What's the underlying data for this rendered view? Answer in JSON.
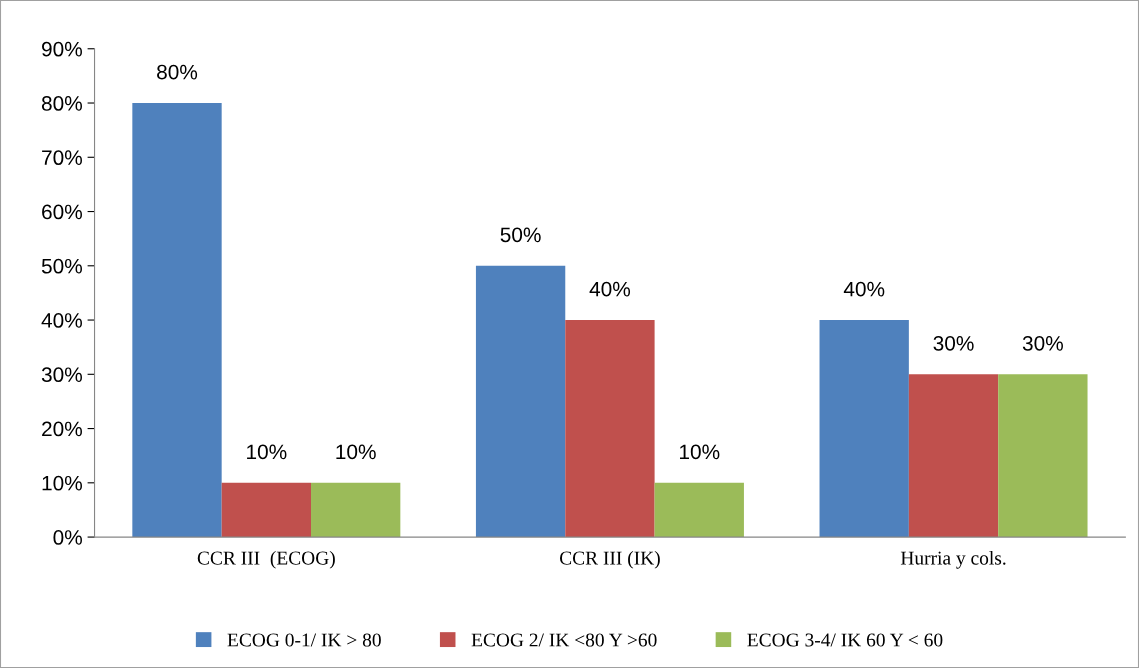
{
  "chart_data": {
    "type": "bar",
    "categories": [
      "CCR III  (ECOG)",
      "CCR III (IK)",
      "Hurria y cols."
    ],
    "series": [
      {
        "name": "ECOG 0-1/ IK > 80",
        "color": "#4f81bd",
        "values": [
          80,
          50,
          40
        ],
        "value_labels": [
          "80%",
          "50%",
          "40%"
        ]
      },
      {
        "name": "ECOG 2/ IK <80 Y >60",
        "color": "#c0504d",
        "values": [
          10,
          40,
          30
        ],
        "value_labels": [
          "10%",
          "40%",
          "30%"
        ]
      },
      {
        "name": "ECOG 3-4/ IK 60 Y < 60",
        "color": "#9bbb59",
        "values": [
          10,
          10,
          30
        ],
        "value_labels": [
          "10%",
          "10%",
          "30%"
        ]
      }
    ],
    "ylim": [
      0,
      90
    ],
    "yticks": [
      {
        "value": 0,
        "label": "0%"
      },
      {
        "value": 10,
        "label": "10%"
      },
      {
        "value": 20,
        "label": "20%"
      },
      {
        "value": 30,
        "label": "30%"
      },
      {
        "value": 40,
        "label": "40%"
      },
      {
        "value": 50,
        "label": "50%"
      },
      {
        "value": 60,
        "label": "60%"
      },
      {
        "value": 70,
        "label": "70%"
      },
      {
        "value": 80,
        "label": "80%"
      },
      {
        "value": 90,
        "label": "90%"
      }
    ],
    "grid": false,
    "legend": "bottom"
  }
}
